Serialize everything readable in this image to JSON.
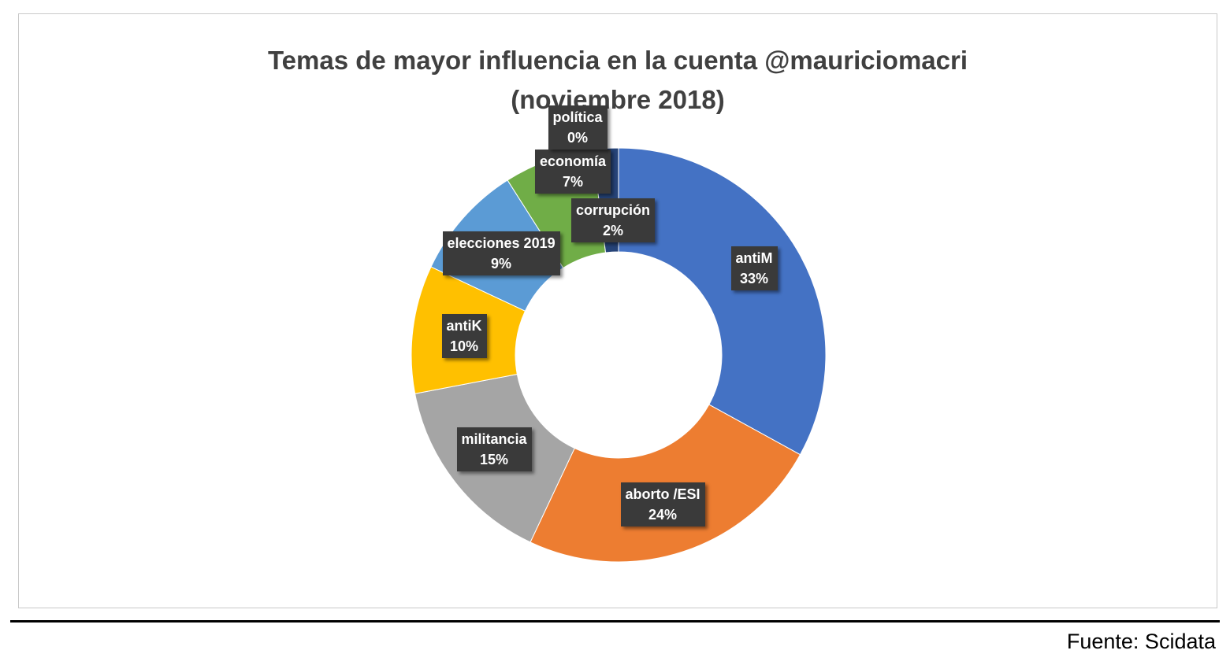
{
  "title_line1": "Temas de mayor influencia en la cuenta @mauriciomacri",
  "title_line2": "(noviembre 2018)",
  "source": "Fuente: Scidata",
  "chart_data": {
    "type": "pie",
    "variant": "donut",
    "title": "Temas de mayor influencia en la cuenta @mauriciomacri (noviembre 2018)",
    "unit": "%",
    "slices": [
      {
        "label": "antiM",
        "value": 33,
        "display": "33%",
        "color": "#4472C4"
      },
      {
        "label": "aborto /ESI",
        "value": 24,
        "display": "24%",
        "color": "#ED7D31"
      },
      {
        "label": "militancia",
        "value": 15,
        "display": "15%",
        "color": "#A5A5A5"
      },
      {
        "label": "antiK",
        "value": 10,
        "display": "10%",
        "color": "#FFC000"
      },
      {
        "label": "elecciones 2019",
        "value": 9,
        "display": "9%",
        "color": "#5B9BD5"
      },
      {
        "label": "economía",
        "value": 7,
        "display": "7%",
        "color": "#70AD47"
      },
      {
        "label": "política",
        "value": 0,
        "display": "0%",
        "color": "#264478"
      },
      {
        "label": "corrupción",
        "value": 2,
        "display": "2%",
        "color": "#264478"
      }
    ],
    "legend": "none",
    "data_labels": "boxed callouts"
  }
}
